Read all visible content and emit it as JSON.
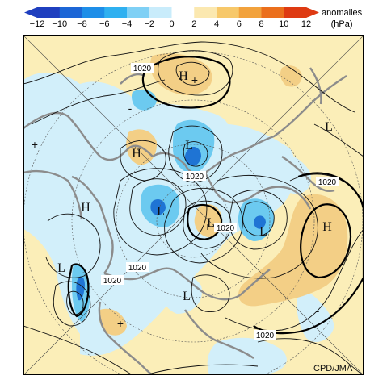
{
  "colorbar": {
    "ticks": [
      "−12",
      "−10",
      "−8",
      "−6",
      "−4",
      "−2",
      "0",
      "2",
      "4",
      "6",
      "8",
      "10",
      "12"
    ],
    "colors": [
      "#1f3fbf",
      "#1c66d6",
      "#1e8ee8",
      "#2fb0f0",
      "#7fd0f5",
      "#c9ecfb",
      "#ffffff",
      "#fbe8b0",
      "#f7c86a",
      "#f2a23c",
      "#eb6f1c",
      "#de3a12"
    ]
  },
  "units": {
    "line1": "anomalies",
    "line2": "(hPa)"
  },
  "labels": {
    "isobar_1": "1020",
    "isobar_2": "1020",
    "isobar_3": "1020",
    "isobar_4": "1020",
    "isobar_5": "1020",
    "isobar_6": "1020",
    "isobar_7": "1020",
    "high": "H",
    "low": "L",
    "plus": "+",
    "minus": "-"
  },
  "credit": "CPD/JMA",
  "colors": {
    "land": "#8c8c8c",
    "positive_light": "#fbeeb8",
    "positive_mid": "#f3cf86",
    "negative_light": "#d2effa",
    "negative_mid": "#6ccaf0",
    "negative_dark": "#1f74d4"
  }
}
